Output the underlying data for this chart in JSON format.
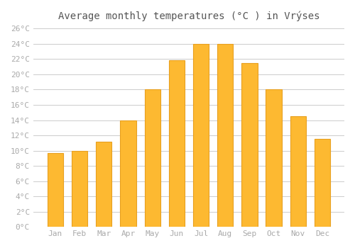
{
  "months": [
    "Jan",
    "Feb",
    "Mar",
    "Apr",
    "May",
    "Jun",
    "Jul",
    "Aug",
    "Sep",
    "Oct",
    "Nov",
    "Dec"
  ],
  "temperatures": [
    9.7,
    10.0,
    11.2,
    14.0,
    18.0,
    21.9,
    24.0,
    24.0,
    21.5,
    18.0,
    14.5,
    11.5
  ],
  "bar_color": "#FDB931",
  "bar_edge_color": "#E8A020",
  "ylim": [
    0,
    26
  ],
  "ytick_step": 2,
  "background_color": "#ffffff",
  "grid_color": "#cccccc",
  "font_color": "#aaaaaa",
  "font_family": "monospace"
}
